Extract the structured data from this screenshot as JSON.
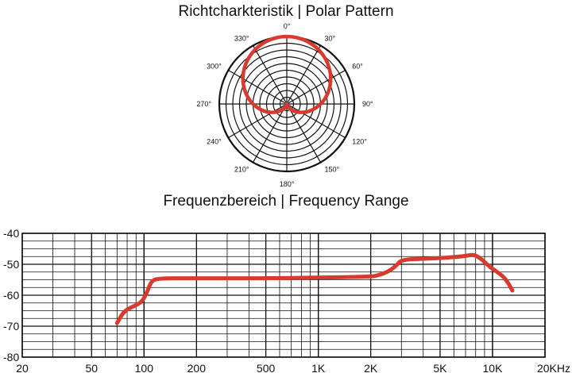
{
  "titles": {
    "polar": "Richtcharkteristik  |  Polar Pattern",
    "frequency": "Frequenzbereich  |  Frequency Range"
  },
  "colors": {
    "curve": "#d83a2e",
    "grid": "#111111"
  },
  "chart_data": [
    {
      "type": "polar",
      "title": "Richtcharkteristik  |  Polar Pattern",
      "angle_labels": [
        "0°",
        "30°",
        "60°",
        "90°",
        "120°",
        "150°",
        "180°",
        "210°",
        "240°",
        "270°",
        "300°",
        "330°"
      ],
      "pattern": "cardioid",
      "series": [
        {
          "angles": [
            0,
            30,
            60,
            90,
            120,
            150,
            180,
            210,
            240,
            270,
            300,
            330
          ],
          "values": [
            1.0,
            0.93,
            0.75,
            0.5,
            0.25,
            0.07,
            0.0,
            0.07,
            0.25,
            0.5,
            0.75,
            0.93
          ]
        }
      ]
    },
    {
      "type": "line",
      "title": "Frequenzbereich  |  Frequency Range",
      "xscale": "log",
      "xlim": [
        20,
        20000
      ],
      "ylim": [
        -80,
        -40
      ],
      "x_ticks": [
        20,
        50,
        100,
        200,
        500,
        1000,
        2000,
        5000,
        10000,
        20000
      ],
      "x_tick_labels": [
        "20",
        "50",
        "100",
        "200",
        "500",
        "1K",
        "2K",
        "5K",
        "10K",
        "20KHz"
      ],
      "y_ticks": [
        -40,
        -50,
        -60,
        -70,
        -80
      ],
      "y_tick_labels": [
        "-40",
        "-50",
        "-60",
        "-70",
        "-80"
      ],
      "grid": true,
      "series": [
        {
          "x": [
            70,
            75,
            80,
            88,
            95,
            100,
            105,
            110,
            120,
            200,
            500,
            1000,
            2000,
            2200,
            2500,
            2800,
            3000,
            4000,
            5000,
            6000,
            7000,
            7800,
            8500,
            9500,
            10000,
            11000,
            12000,
            13000
          ],
          "y": [
            -69,
            -66,
            -64.5,
            -63.5,
            -62.5,
            -61,
            -58.5,
            -55.5,
            -54.5,
            -54.5,
            -54.5,
            -54.3,
            -54,
            -53.6,
            -52.5,
            -50.5,
            -48.5,
            -48.2,
            -48,
            -47.7,
            -47.3,
            -46.8,
            -48,
            -50.5,
            -51.5,
            -53,
            -55,
            -58.5
          ]
        }
      ]
    }
  ]
}
